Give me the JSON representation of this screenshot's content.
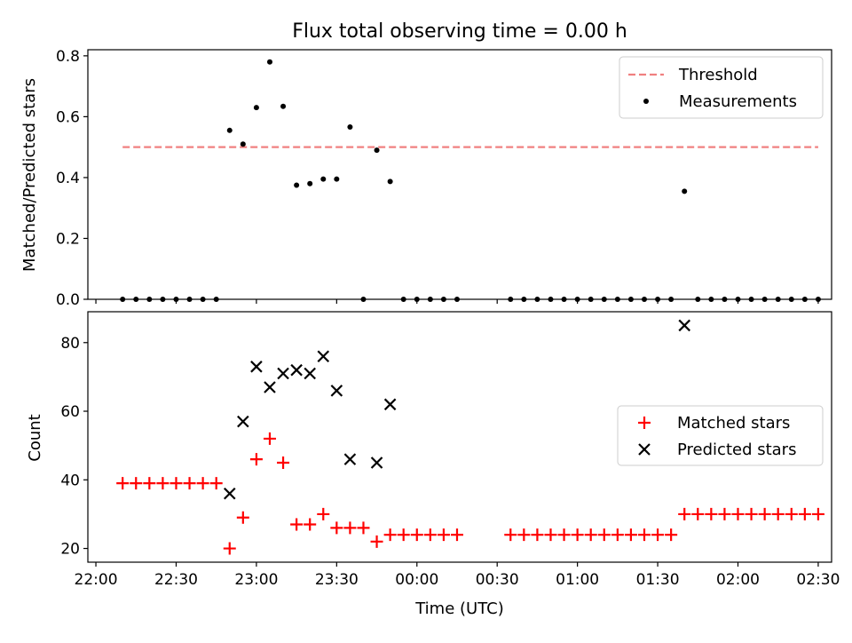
{
  "chart_data": [
    {
      "type": "scatter",
      "title": "Flux total observing time = 0.00 h",
      "xlabel": "",
      "ylabel": "Matched/Predicted stars",
      "xlim": [
        "21:57",
        "02:35"
      ],
      "ylim": [
        0,
        0.82
      ],
      "yticks": [
        "0.0",
        "0.2",
        "0.4",
        "0.6",
        "0.8"
      ],
      "grid": false,
      "legend": "top-right",
      "series": [
        {
          "name": "Threshold",
          "style": "dashed-line",
          "color": "#f08080",
          "x": [
            "22:10",
            "02:30"
          ],
          "y": [
            0.5,
            0.5
          ]
        },
        {
          "name": "Measurements",
          "style": "dots",
          "color": "#000000",
          "x": [
            "22:10",
            "22:15",
            "22:20",
            "22:25",
            "22:30",
            "22:35",
            "22:40",
            "22:45",
            "22:50",
            "22:55",
            "23:00",
            "23:05",
            "23:10",
            "23:15",
            "23:20",
            "23:25",
            "23:30",
            "23:35",
            "23:40",
            "23:45",
            "23:50",
            "23:55",
            "00:00",
            "00:05",
            "00:10",
            "00:15",
            "00:35",
            "00:40",
            "00:45",
            "00:50",
            "00:55",
            "01:00",
            "01:05",
            "01:10",
            "01:15",
            "01:20",
            "01:25",
            "01:30",
            "01:35",
            "01:40",
            "01:45",
            "01:50",
            "01:55",
            "02:00",
            "02:05",
            "02:10",
            "02:15",
            "02:20",
            "02:25",
            "02:30"
          ],
          "y": [
            0,
            0,
            0,
            0,
            0,
            0,
            0,
            0,
            0.555,
            0.51,
            0.63,
            0.78,
            0.634,
            0.375,
            0.38,
            0.395,
            0.395,
            0.566,
            0,
            0.49,
            0.387,
            0,
            0,
            0,
            0,
            0,
            0,
            0,
            0,
            0,
            0,
            0,
            0,
            0,
            0,
            0,
            0,
            0,
            0,
            0.355,
            0,
            0,
            0,
            0,
            0,
            0,
            0,
            0,
            0,
            0
          ]
        }
      ]
    },
    {
      "type": "scatter",
      "title": "",
      "xlabel": "Time (UTC)",
      "ylabel": "Count",
      "xlim": [
        "21:57",
        "02:35"
      ],
      "ylim": [
        16,
        89
      ],
      "yticks": [
        "20",
        "40",
        "60",
        "80"
      ],
      "xticks": [
        "22:00",
        "22:30",
        "23:00",
        "23:30",
        "00:00",
        "00:30",
        "01:00",
        "01:30",
        "02:00",
        "02:30"
      ],
      "grid": false,
      "legend": "center-right",
      "series": [
        {
          "name": "Matched stars",
          "style": "plus",
          "color": "#ff0000",
          "x": [
            "22:10",
            "22:15",
            "22:20",
            "22:25",
            "22:30",
            "22:35",
            "22:40",
            "22:45",
            "22:50",
            "22:55",
            "23:00",
            "23:05",
            "23:10",
            "23:15",
            "23:20",
            "23:25",
            "23:30",
            "23:35",
            "23:40",
            "23:45",
            "23:50",
            "23:55",
            "00:00",
            "00:05",
            "00:10",
            "00:15",
            "00:35",
            "00:40",
            "00:45",
            "00:50",
            "00:55",
            "01:00",
            "01:05",
            "01:10",
            "01:15",
            "01:20",
            "01:25",
            "01:30",
            "01:35",
            "01:40",
            "01:45",
            "01:50",
            "01:55",
            "02:00",
            "02:05",
            "02:10",
            "02:15",
            "02:20",
            "02:25",
            "02:30"
          ],
          "y": [
            39,
            39,
            39,
            39,
            39,
            39,
            39,
            39,
            20,
            29,
            46,
            52,
            45,
            27,
            27,
            30,
            26,
            26,
            26,
            22,
            24,
            24,
            24,
            24,
            24,
            24,
            24,
            24,
            24,
            24,
            24,
            24,
            24,
            24,
            24,
            24,
            24,
            24,
            24,
            30,
            30,
            30,
            30,
            30,
            30,
            30,
            30,
            30,
            30,
            30
          ]
        },
        {
          "name": "Predicted stars",
          "style": "x",
          "color": "#000000",
          "x": [
            "22:50",
            "22:55",
            "23:00",
            "23:05",
            "23:10",
            "23:15",
            "23:20",
            "23:25",
            "23:30",
            "23:35",
            "23:45",
            "23:50",
            "01:40"
          ],
          "y": [
            36,
            57,
            73,
            67,
            71,
            72,
            71,
            76,
            66,
            46,
            45,
            62,
            85
          ]
        }
      ]
    }
  ]
}
